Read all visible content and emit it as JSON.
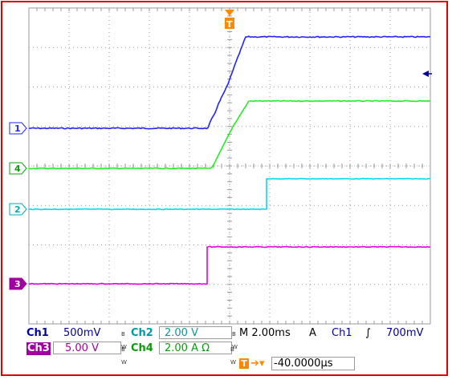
{
  "colors": {
    "ch1": "#2323ff",
    "ch2": "#00dcef",
    "ch3": "#e600e6",
    "ch4": "#22ee22",
    "grid": "#999999",
    "frame": "#e00000",
    "trigger": "#ff8800",
    "text_blue": "#0000a0"
  },
  "markers": {
    "ch1": "1",
    "ch4": "4",
    "ch2": "2",
    "ch3": "3",
    "trigger": "T"
  },
  "readout": {
    "row1": {
      "ch1_label": "Ch1",
      "ch1_scale": "500mV",
      "ch2_label": "Ch2",
      "ch2_scale": "2.00 V",
      "timebase": "M 2.00ms",
      "trig_mode": "A",
      "trig_src": "Ch1",
      "trig_slope": "∫",
      "trig_level": "700mV"
    },
    "row2": {
      "ch3_label": "Ch3",
      "ch3_scale": "5.00 V",
      "ch4_label": "Ch4",
      "ch4_scale": "2.00 A Ω"
    },
    "row3": {
      "trigger_pos": "-40.0000µs"
    },
    "bw": "B W"
  }
}
